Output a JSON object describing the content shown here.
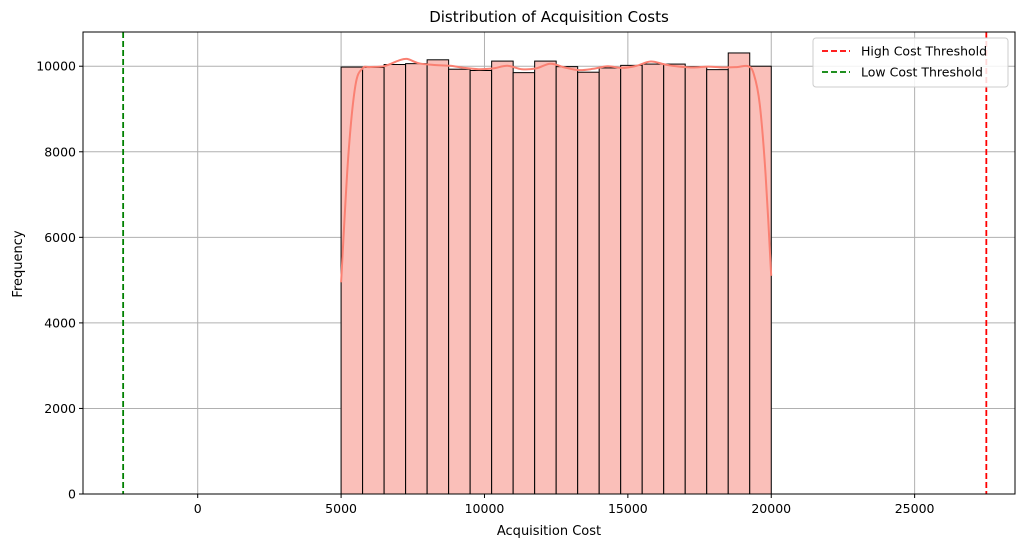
{
  "chart_data": {
    "type": "bar",
    "title": "Distribution of Acquisition Costs",
    "xlabel": "Acquisition Cost",
    "ylabel": "Frequency",
    "xlim": [
      -4000,
      28500
    ],
    "ylim": [
      0,
      10800
    ],
    "xticks": [
      0,
      5000,
      10000,
      15000,
      20000,
      25000
    ],
    "yticks": [
      0,
      2000,
      4000,
      6000,
      8000,
      10000
    ],
    "grid": true,
    "bins": {
      "start": 5000,
      "width": 750,
      "values": [
        9980,
        9970,
        10040,
        10060,
        10150,
        9930,
        9900,
        10120,
        9850,
        10120,
        9990,
        9860,
        9960,
        10020,
        10050,
        10050,
        9990,
        9920,
        10310,
        10000
      ]
    },
    "kde": {
      "x": [
        5000,
        5250,
        5500,
        5750,
        6000,
        6500,
        7000,
        7300,
        7700,
        8200,
        8800,
        9300,
        9800,
        10300,
        10800,
        11300,
        11800,
        12300,
        12800,
        13300,
        13800,
        14300,
        14800,
        15300,
        15800,
        16300,
        16800,
        17300,
        17800,
        18300,
        18800,
        19200,
        19400,
        19600,
        19800,
        20000
      ],
      "y": [
        4950,
        7900,
        9550,
        9950,
        9980,
        10000,
        10130,
        10170,
        10070,
        10030,
        10010,
        9960,
        9930,
        9950,
        10010,
        9930,
        9950,
        10060,
        9970,
        9910,
        9940,
        10000,
        9960,
        10010,
        10110,
        10040,
        9990,
        9970,
        9990,
        9970,
        9980,
        10000,
        9800,
        9100,
        7500,
        5100
      ]
    },
    "hlines": [],
    "vlines": [
      {
        "x": 27500,
        "label": "High Cost Threshold",
        "color": "#ff0000"
      },
      {
        "x": -2600,
        "label": "Low Cost Threshold",
        "color": "#008000"
      }
    ],
    "bar_fill": "#fabfb9",
    "bar_edge": "#000000",
    "kde_color": "#fa8072",
    "legend_position": "top-right",
    "legend": [
      "High Cost Threshold",
      "Low Cost Threshold"
    ]
  }
}
